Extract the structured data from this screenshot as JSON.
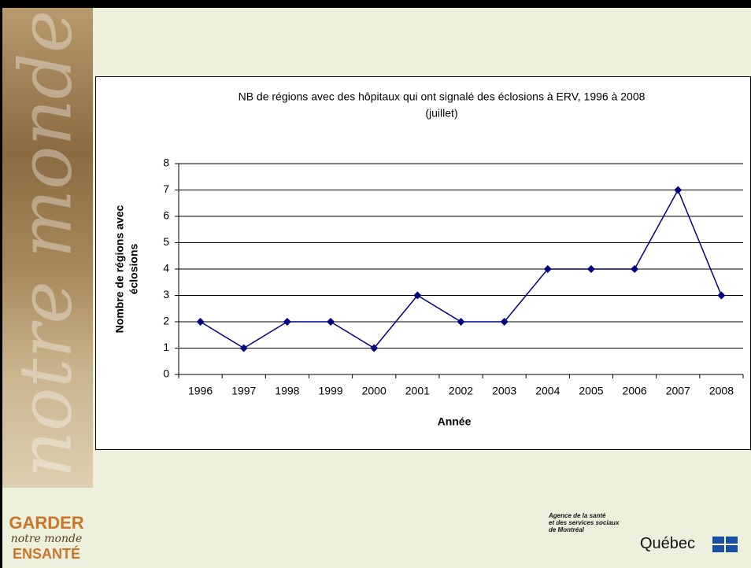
{
  "chart_data": {
    "type": "line",
    "title": [
      "NB de régions avec des hôpitaux qui ont signalé des éclosions à ERV, 1996 à 2008",
      "(juillet)"
    ],
    "x_label": "Année",
    "y_label": [
      "Nombre de régions avec",
      "éclosions"
    ],
    "categories": [
      "1996",
      "1997",
      "1998",
      "1999",
      "2000",
      "2001",
      "2002",
      "2003",
      "2004",
      "2005",
      "2006",
      "2007",
      "2008"
    ],
    "series": [
      {
        "name": "Nombre de régions",
        "color": "#000080",
        "values": [
          2,
          1,
          2,
          2,
          1,
          3,
          2,
          2,
          4,
          4,
          4,
          7,
          3
        ]
      }
    ],
    "ylim": [
      0,
      8
    ],
    "yticks": [
      0,
      1,
      2,
      3,
      4,
      5,
      6,
      7,
      8
    ],
    "grid": true
  },
  "sidebar": {
    "text": "notre monde"
  },
  "logo": {
    "line1": "GARDER",
    "line2": "notre monde",
    "line3": "ENSANTÉ"
  },
  "agency": {
    "lines": [
      "Agence de la santé",
      "et des services sociaux",
      "de Montréal"
    ],
    "name": "Québec"
  }
}
